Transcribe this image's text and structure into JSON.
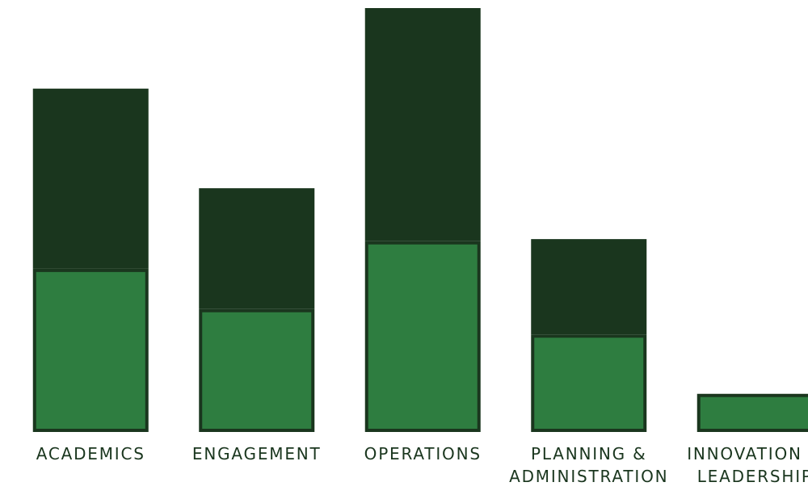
{
  "chart_data": {
    "type": "stacked-bar",
    "categories": [
      [
        "ACADEMICS"
      ],
      [
        "ENGAGEMENT"
      ],
      [
        "OPERATIONS"
      ],
      [
        "PLANNING &",
        "ADMINISTRATION"
      ],
      [
        "INNOVATION &",
        "LEADERSHIP"
      ]
    ],
    "series": [
      {
        "color": "#2e7d40",
        "values": [
          38.5,
          29,
          45,
          23,
          9
        ]
      },
      {
        "color": "#1a361e",
        "values": [
          42.5,
          28.5,
          55,
          22.5,
          0
        ]
      }
    ],
    "ylim": [
      0,
      100
    ]
  }
}
